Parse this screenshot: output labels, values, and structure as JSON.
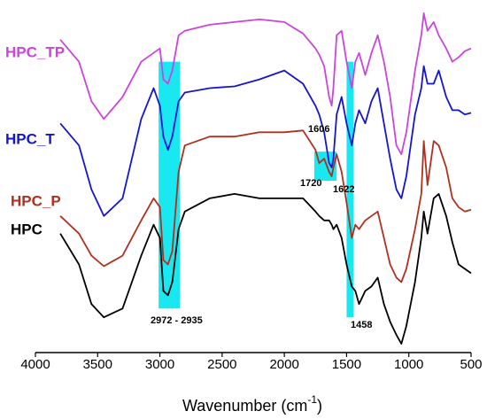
{
  "chart_data": {
    "type": "line",
    "xlabel": [
      "Wavenumber (cm",
      "-1",
      ")"
    ],
    "x": [
      3800,
      3650,
      3550,
      3450,
      3300,
      3150,
      3050,
      3000,
      2972,
      2935,
      2900,
      2850,
      2800,
      2600,
      2400,
      2200,
      2000,
      1850,
      1750,
      1720,
      1680,
      1640,
      1620,
      1606,
      1580,
      1540,
      1500,
      1458,
      1430,
      1400,
      1350,
      1300,
      1250,
      1200,
      1150,
      1100,
      1060,
      1020,
      950,
      900,
      880,
      850,
      800,
      760,
      700,
      650,
      600,
      550,
      500
    ],
    "series": [
      {
        "name": "HPC_TP",
        "color": "#cc44dd",
        "values": [
          355,
          330,
          285,
          265,
          290,
          330,
          340,
          345,
          310,
          305,
          320,
          360,
          365,
          372,
          375,
          378,
          375,
          362,
          345,
          338,
          325,
          290,
          280,
          300,
          360,
          365,
          330,
          300,
          330,
          340,
          315,
          340,
          360,
          330,
          290,
          235,
          225,
          250,
          320,
          360,
          385,
          365,
          375,
          360,
          345,
          330,
          335,
          342,
          345
        ]
      },
      {
        "name": "HPC_T",
        "color": "#1515d0",
        "values": [
          260,
          235,
          185,
          155,
          175,
          265,
          300,
          280,
          245,
          230,
          245,
          285,
          295,
          300,
          302,
          310,
          320,
          305,
          280,
          270,
          250,
          215,
          210,
          220,
          270,
          290,
          260,
          235,
          260,
          275,
          260,
          285,
          300,
          260,
          220,
          185,
          175,
          200,
          270,
          300,
          325,
          305,
          305,
          320,
          290,
          275,
          275,
          270,
          272
        ]
      },
      {
        "name": "HPC_P",
        "color": "#b03020",
        "values": [
          155,
          135,
          110,
          98,
          110,
          150,
          175,
          165,
          105,
          100,
          115,
          205,
          235,
          245,
          245,
          250,
          250,
          252,
          230,
          215,
          220,
          205,
          200,
          210,
          225,
          205,
          170,
          130,
          145,
          140,
          150,
          155,
          160,
          130,
          100,
          85,
          80,
          95,
          140,
          180,
          240,
          190,
          240,
          235,
          210,
          175,
          165,
          160,
          162
        ]
      },
      {
        "name": "HPC",
        "color": "#000000",
        "values": [
          135,
          100,
          55,
          40,
          50,
          110,
          145,
          130,
          70,
          65,
          80,
          140,
          160,
          175,
          180,
          175,
          175,
          175,
          160,
          155,
          150,
          150,
          145,
          140,
          145,
          130,
          100,
          75,
          70,
          55,
          70,
          75,
          85,
          55,
          35,
          20,
          10,
          30,
          80,
          130,
          160,
          135,
          175,
          180,
          155,
          125,
          100,
          95,
          90
        ]
      }
    ],
    "bands": [
      {
        "x": [
          3010,
          2840
        ],
        "y": [
          50,
          330
        ]
      },
      {
        "x": [
          1500,
          1445
        ],
        "y": [
          40,
          330
        ]
      },
      {
        "x": [
          1760,
          1580
        ],
        "y": [
          195,
          228
        ]
      }
    ],
    "band_color": "#00e5ee",
    "annotations": [
      "1606",
      "1720",
      "1622",
      "2972 - 2935",
      "1458"
    ],
    "xlim": [
      4000,
      500
    ],
    "ylim": [
      0,
      400
    ],
    "xticks": [
      4000,
      3500,
      3000,
      2500,
      2000,
      1500,
      1000,
      500
    ]
  }
}
